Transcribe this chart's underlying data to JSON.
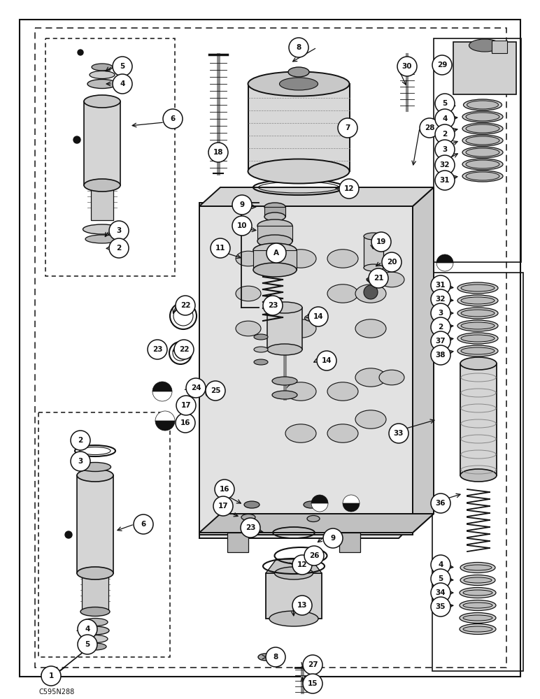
{
  "bg": "#f5f5f0",
  "fg": "#111111",
  "label": "C595N288",
  "fig_w": 7.72,
  "fig_h": 10.0,
  "dpi": 100
}
